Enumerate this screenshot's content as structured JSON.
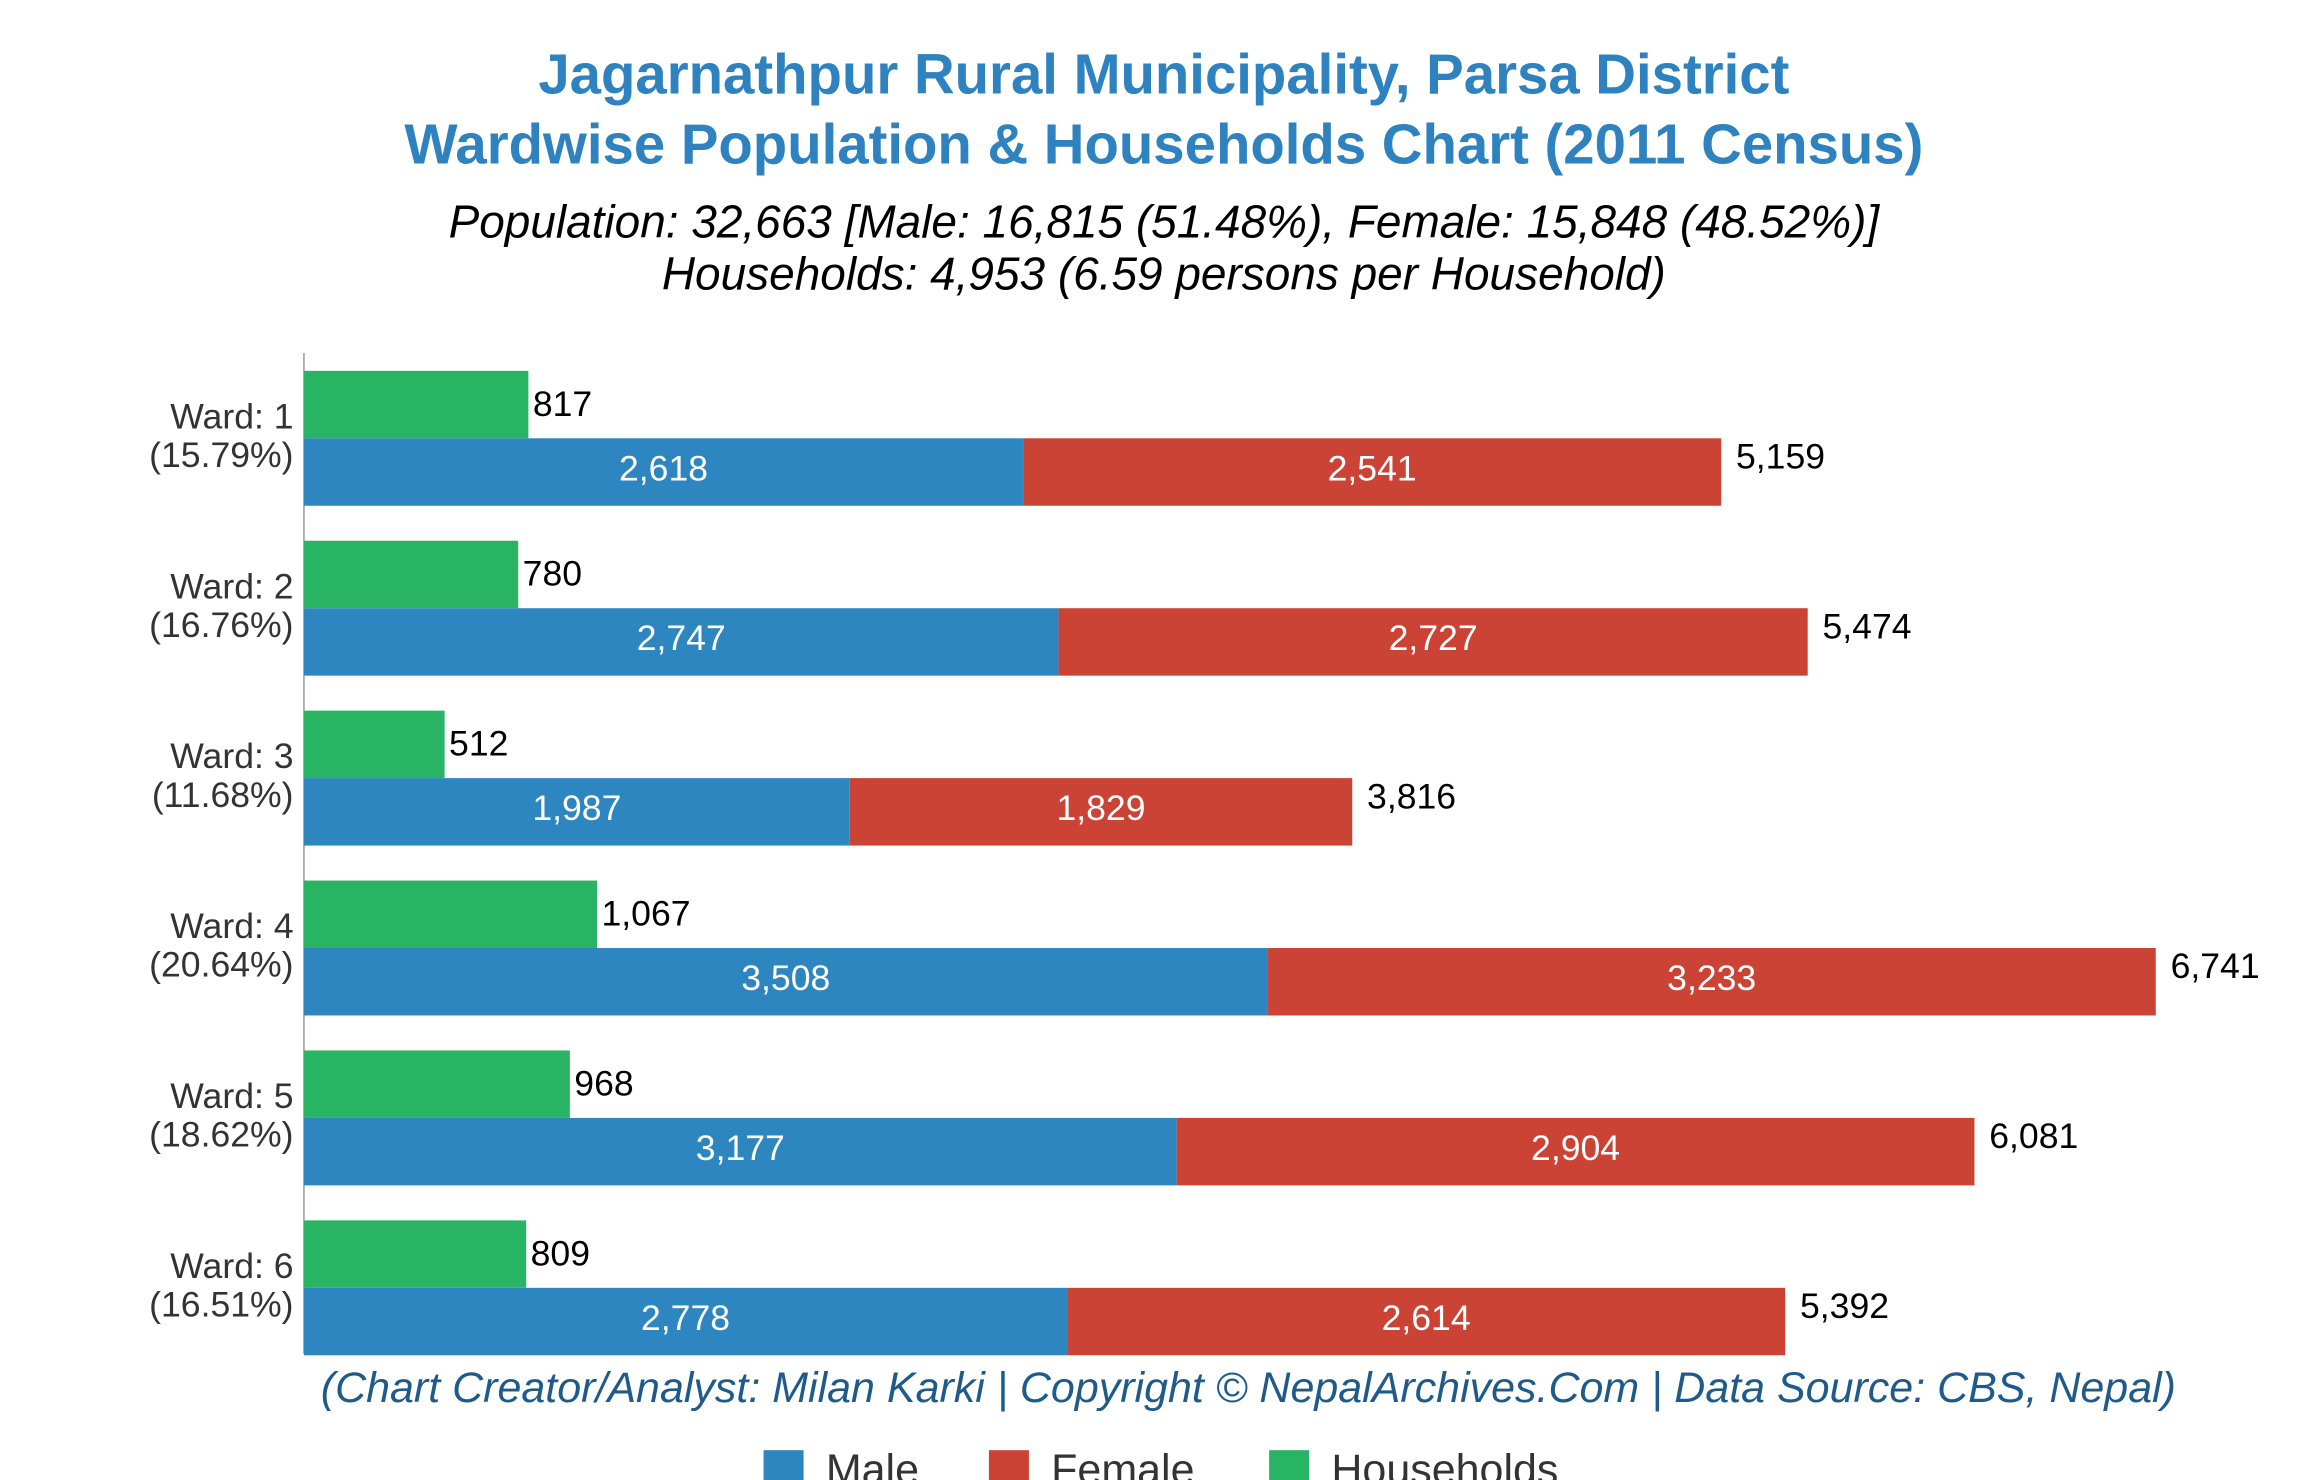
{
  "chart_data": {
    "type": "bar",
    "orientation": "horizontal",
    "title": [
      "Jagarnathpur Rural Municipality, Parsa District",
      "Wardwise Population & Households Chart (2011 Census)"
    ],
    "subtitle": [
      "Population: 32,663 [Male: 16,815 (51.48%), Female: 15,848 (48.52%)]",
      "Households: 4,953 (6.59 persons per Household)"
    ],
    "categories": [
      "Ward: 1",
      "Ward: 2",
      "Ward: 3",
      "Ward: 4",
      "Ward: 5",
      "Ward: 6"
    ],
    "category_shares": [
      "(15.79%)",
      "(16.76%)",
      "(11.68%)",
      "(20.64%)",
      "(18.62%)",
      "(16.51%)"
    ],
    "series": [
      {
        "name": "Male",
        "color": "#2e86c1",
        "stack": "population",
        "values": [
          2618,
          2747,
          1987,
          3508,
          3177,
          2778
        ],
        "value_labels": [
          "2,618",
          "2,747",
          "1,987",
          "3,508",
          "3,177",
          "2,778"
        ]
      },
      {
        "name": "Female",
        "color": "#cb4335",
        "stack": "population",
        "values": [
          2541,
          2727,
          1829,
          3233,
          2904,
          2614
        ],
        "value_labels": [
          "2,541",
          "2,727",
          "1,829",
          "3,233",
          "2,904",
          "2,614"
        ]
      },
      {
        "name": "Households",
        "color": "#28b463",
        "stack": "households",
        "values": [
          817,
          780,
          512,
          1067,
          968,
          809
        ],
        "value_labels": [
          "817",
          "780",
          "512",
          "1,067",
          "968",
          "809"
        ]
      }
    ],
    "totals": {
      "values": [
        5159,
        5474,
        3816,
        6741,
        6081,
        5392
      ],
      "value_labels": [
        "5,159",
        "5,474",
        "3,816",
        "6,741",
        "6,081",
        "5,392"
      ]
    },
    "xlim": [
      0,
      7000
    ],
    "grid": false,
    "legend": "bottom",
    "source": "(Chart Creator/Analyst: Milan Karki | Copyright © NepalArchives.Com | Data Source: CBS, Nepal)"
  }
}
